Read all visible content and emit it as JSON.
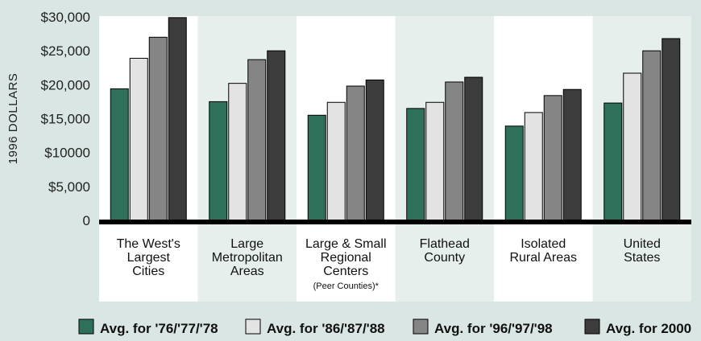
{
  "chart_data": {
    "type": "bar",
    "title": "",
    "xlabel": "",
    "ylabel": "1996 DOLLARS",
    "ylim": [
      0,
      30000
    ],
    "yticks": [
      {
        "value": 0,
        "label": "0"
      },
      {
        "value": 5000,
        "label": "$5,000"
      },
      {
        "value": 10000,
        "label": "$10000"
      },
      {
        "value": 15000,
        "label": "$15,000"
      },
      {
        "value": 20000,
        "label": "$20,000"
      },
      {
        "value": 25000,
        "label": "$25,000"
      },
      {
        "value": 30000,
        "label": "$30,000"
      }
    ],
    "categories": [
      {
        "label": "The West's\nLargest\nCities",
        "note": ""
      },
      {
        "label": "Large\nMetropolitan\nAreas",
        "note": ""
      },
      {
        "label": "Large & Small\nRegional\nCenters",
        "note": "(Peer Counties)*"
      },
      {
        "label": "Flathead\nCounty",
        "note": ""
      },
      {
        "label": "Isolated\nRural Areas",
        "note": ""
      },
      {
        "label": "United\nStates",
        "note": ""
      }
    ],
    "series": [
      {
        "name": "Avg. for '76/'77/'78",
        "color": "#2e7059",
        "values": [
          19400,
          17500,
          15500,
          16500,
          13900,
          17300
        ]
      },
      {
        "name": "Avg. for '86/'87/'88",
        "color": "#e3e3e3",
        "values": [
          23900,
          20200,
          17400,
          17400,
          15900,
          21700
        ]
      },
      {
        "name": "Avg. for '96/'97/'98",
        "color": "#858585",
        "values": [
          27000,
          23700,
          19800,
          20400,
          18400,
          25000
        ]
      },
      {
        "name": "Avg. for 2000",
        "color": "#3c3c3c",
        "values": [
          29900,
          25000,
          20700,
          21100,
          19300,
          26800
        ]
      }
    ],
    "grid": false,
    "legend_position": "bottom",
    "band_colors": [
      "#ffffff",
      "#e6efec"
    ],
    "baseline_color": "#000000"
  }
}
